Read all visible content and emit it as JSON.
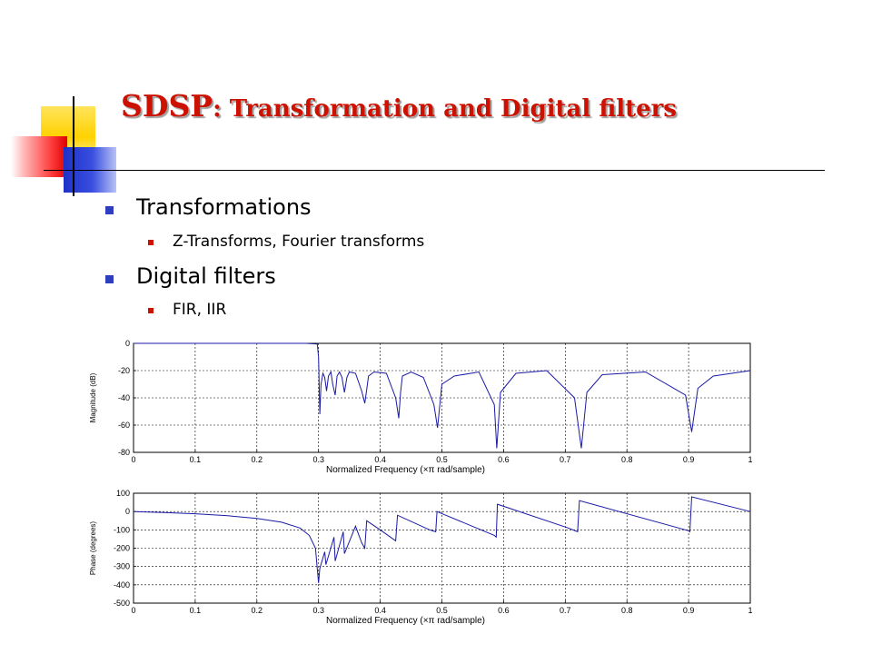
{
  "slide": {
    "title_main": "SDSP",
    "title_sub": ": Transformation and Digital filters",
    "bullets": [
      {
        "text": "Transformations",
        "subitems": [
          "Z-Transforms, Fourier transforms"
        ]
      },
      {
        "text": "Digital filters",
        "subitems": [
          "FIR, IIR"
        ]
      }
    ]
  },
  "colors": {
    "title": "#cc1100",
    "curve": "#1a1aa6",
    "bullet_l1": "#2e3ebf",
    "bullet_l2": "#cc1100"
  },
  "chart_data": [
    {
      "type": "line",
      "title": "",
      "xlabel": "Normalized Frequency  (×π rad/sample)",
      "ylabel": "Magnitude (dB)",
      "xlim": [
        0,
        1
      ],
      "ylim": [
        -80,
        0
      ],
      "xticks": [
        "0",
        "0.1",
        "0.2",
        "0.3",
        "0.4",
        "0.5",
        "0.6",
        "0.7",
        "0.8",
        "0.9",
        "1"
      ],
      "yticks": [
        "0",
        "-20",
        "-40",
        "-60",
        "-80"
      ],
      "grid": true,
      "series": [
        {
          "x": [
            0,
            0.1,
            0.2,
            0.28,
            0.298,
            0.3,
            0.302,
            0.304,
            0.307,
            0.31,
            0.313,
            0.316,
            0.32,
            0.323,
            0.327,
            0.33,
            0.334,
            0.338,
            0.342,
            0.346,
            0.35,
            0.36,
            0.37,
            0.375,
            0.378,
            0.381,
            0.39,
            0.41,
            0.425,
            0.43,
            0.433,
            0.436,
            0.45,
            0.47,
            0.487,
            0.493,
            0.5,
            0.52,
            0.56,
            0.585,
            0.589,
            0.595,
            0.62,
            0.67,
            0.715,
            0.726,
            0.735,
            0.76,
            0.83,
            0.895,
            0.905,
            0.915,
            0.94,
            1.0
          ],
          "y": [
            0,
            0,
            0,
            0,
            -0.5,
            -10,
            -52,
            -30,
            -22,
            -25,
            -35,
            -24,
            -21,
            -30,
            -38,
            -24,
            -21,
            -25,
            -36,
            -25,
            -21,
            -22,
            -35,
            -44,
            -34,
            -24,
            -21,
            -22,
            -40,
            -55,
            -36,
            -24,
            -21,
            -25,
            -45,
            -62,
            -30,
            -24,
            -21,
            -45,
            -77,
            -36,
            -22,
            -20,
            -40,
            -77,
            -36,
            -23,
            -21,
            -38,
            -65,
            -33,
            -24,
            -20
          ]
        }
      ]
    },
    {
      "type": "line",
      "title": "",
      "xlabel": "Normalized Frequency  (×π rad/sample)",
      "ylabel": "Phase (degrees)",
      "xlim": [
        0,
        1
      ],
      "ylim": [
        -500,
        100
      ],
      "xticks": [
        "0",
        "0.1",
        "0.2",
        "0.3",
        "0.4",
        "0.5",
        "0.6",
        "0.7",
        "0.8",
        "0.9",
        "1"
      ],
      "yticks": [
        "100",
        "0",
        "-100",
        "-200",
        "-300",
        "-400",
        "-500"
      ],
      "grid": true,
      "series": [
        {
          "x": [
            0,
            0.05,
            0.1,
            0.15,
            0.2,
            0.24,
            0.27,
            0.285,
            0.295,
            0.3,
            0.302,
            0.31,
            0.312,
            0.325,
            0.327,
            0.34,
            0.342,
            0.36,
            0.37,
            0.375,
            0.378,
            0.4,
            0.425,
            0.428,
            0.48,
            0.49,
            0.492,
            0.585,
            0.588,
            0.59,
            0.705,
            0.72,
            0.723,
            0.9,
            0.902,
            0.905,
            1.0
          ],
          "y": [
            0,
            -5,
            -12,
            -22,
            -38,
            -58,
            -90,
            -130,
            -200,
            -390,
            -310,
            -220,
            -290,
            -140,
            -270,
            -110,
            -230,
            -80,
            -170,
            -200,
            -50,
            -100,
            -160,
            -20,
            -100,
            -110,
            0,
            -130,
            -140,
            40,
            -90,
            -110,
            60,
            -105,
            -110,
            80,
            0
          ]
        }
      ]
    }
  ]
}
